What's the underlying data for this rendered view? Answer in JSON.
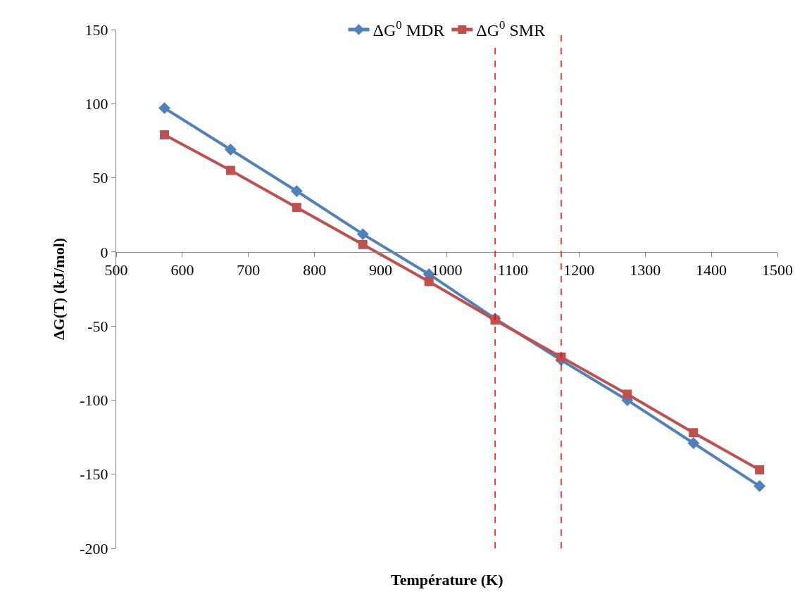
{
  "chart_data": {
    "type": "line",
    "xlabel": "Température (K)",
    "ylabel": "ΔG(T) (kJ/mol)",
    "x": [
      573,
      673,
      773,
      873,
      973,
      1073,
      1173,
      1273,
      1373,
      1473
    ],
    "series": [
      {
        "name": "ΔG$^{0}$ MDR",
        "color": "#4f81bd",
        "marker": "diamond",
        "values": [
          97,
          69,
          41,
          12,
          -15,
          -45,
          -73,
          -100,
          -129,
          -158
        ]
      },
      {
        "name": "ΔG$^{0}$ SMR",
        "color": "#c0504d",
        "marker": "square",
        "values": [
          79,
          55,
          30,
          5,
          -20,
          -46,
          -71,
          -96,
          -122,
          -147
        ]
      }
    ],
    "xlim": [
      500,
      1500
    ],
    "xticks": [
      500,
      600,
      700,
      800,
      900,
      1000,
      1100,
      1200,
      1300,
      1400,
      1500
    ],
    "ylim": [
      -200,
      150
    ],
    "yticks": [
      -200,
      -150,
      -100,
      -50,
      0,
      50,
      100,
      150
    ],
    "ref_lines": [
      {
        "axis": "x",
        "value": 1073,
        "color": "#ff0000",
        "line_style": "dashed"
      },
      {
        "axis": "x",
        "value": 1173,
        "color": "#ff0000",
        "line_style": "dashed"
      }
    ],
    "legend": "top"
  }
}
